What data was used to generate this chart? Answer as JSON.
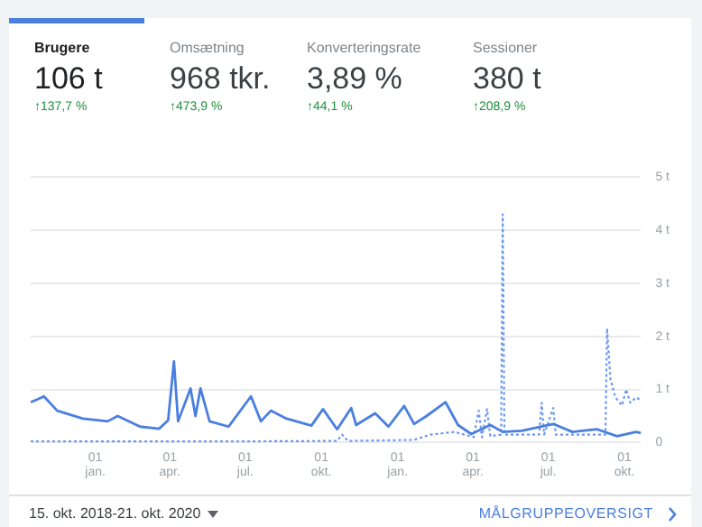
{
  "chart_data": [
    {
      "type": "other",
      "annotations": [
        "Brugere",
        "106 t",
        "↑137,7 %",
        "Omsætning",
        "968 tkr.",
        "↑473,9 %",
        "Konverteringsrate",
        "3,89 %",
        "↑44,1 %",
        "Sessioner",
        "380 t",
        "↑208,9 %"
      ]
    },
    {
      "type": "line",
      "xlim": [
        "2018-10-15",
        "2020-10-21"
      ],
      "xticks": [
        {
          "value": "2019-01-01",
          "label": "01 jan."
        },
        {
          "value": "2019-04-01",
          "label": "01 apr."
        },
        {
          "value": "2019-07-01",
          "label": "01 jul."
        },
        {
          "value": "2019-10-01",
          "label": "01 okt."
        },
        {
          "value": "2020-01-01",
          "label": "01 jan."
        },
        {
          "value": "2020-04-01",
          "label": "01 apr."
        },
        {
          "value": "2020-07-01",
          "label": "01 jul."
        },
        {
          "value": "2020-10-01",
          "label": "01 okt."
        }
      ],
      "ylim": [
        0,
        5
      ],
      "yticks": [
        0,
        {
          "value": 1,
          "label": "1 t"
        },
        {
          "value": 2,
          "label": "2 t"
        },
        {
          "value": 3,
          "label": "3 t"
        },
        {
          "value": 4,
          "label": "4 t"
        },
        {
          "value": 5,
          "label": "5 t"
        }
      ],
      "grid": "y",
      "legend": false,
      "marker": "none",
      "series": [
        {
          "color": "#4a7fe0",
          "line_style": "solid",
          "x": [
            "2018-10-15",
            "2018-10-24",
            "2018-10-31",
            "2018-11-16",
            "2018-12-17",
            "2019-01-16",
            "2019-01-28",
            "2019-02-24",
            "2019-03-19",
            "2019-03-30",
            "2019-04-06",
            "2019-04-11",
            "2019-04-26",
            "2019-05-02",
            "2019-05-08",
            "2019-05-19",
            "2019-06-11",
            "2019-07-08",
            "2019-07-20",
            "2019-08-01",
            "2019-08-20",
            "2019-09-19",
            "2019-10-03",
            "2019-10-20",
            "2019-11-06",
            "2019-11-12",
            "2019-12-05",
            "2019-12-21",
            "2020-01-09",
            "2020-01-21",
            "2020-02-05",
            "2020-02-28",
            "2020-03-14",
            "2020-03-30",
            "2020-04-22",
            "2020-05-07",
            "2020-05-30",
            "2020-07-07",
            "2020-07-30",
            "2020-08-29",
            "2020-09-22",
            "2020-10-15",
            "2020-10-21"
          ],
          "values": [
            0.76,
            0.82,
            0.87,
            0.6,
            0.45,
            0.4,
            0.5,
            0.3,
            0.26,
            0.42,
            1.53,
            0.4,
            1.02,
            0.5,
            1.02,
            0.4,
            0.3,
            0.87,
            0.4,
            0.6,
            0.45,
            0.32,
            0.63,
            0.25,
            0.65,
            0.33,
            0.55,
            0.3,
            0.69,
            0.35,
            0.5,
            0.76,
            0.33,
            0.16,
            0.33,
            0.2,
            0.22,
            0.35,
            0.2,
            0.25,
            0.12,
            0.2,
            0.18
          ]
        },
        {
          "color": "#6b98ee",
          "line_style": "dotted",
          "x": [
            "2018-10-15",
            "2019-06-01",
            "2019-10-20",
            "2019-10-26",
            "2019-11-02",
            "2020-01-21",
            "2020-02-10",
            "2020-03-10",
            "2020-04-02",
            "2020-04-08",
            "2020-04-12",
            "2020-04-18",
            "2020-04-22",
            "2020-05-05",
            "2020-05-07",
            "2020-05-09",
            "2020-06-20",
            "2020-06-23",
            "2020-06-26",
            "2020-07-07",
            "2020-07-10",
            "2020-09-08",
            "2020-09-10",
            "2020-09-14",
            "2020-09-20",
            "2020-09-28",
            "2020-10-03",
            "2020-10-08",
            "2020-10-15",
            "2020-10-21"
          ],
          "values": [
            0.02,
            0.02,
            0.03,
            0.15,
            0.03,
            0.05,
            0.15,
            0.2,
            0.1,
            0.6,
            0.1,
            0.63,
            0.12,
            0.15,
            4.3,
            0.15,
            0.15,
            0.75,
            0.15,
            0.65,
            0.15,
            0.15,
            2.15,
            1.2,
            0.85,
            0.7,
            1.0,
            0.75,
            0.85,
            0.8
          ]
        }
      ],
      "annotations": [
        "15. okt. 2018-21. okt. 2020",
        "MÅLGRUPPEOVERSIGT"
      ]
    }
  ]
}
